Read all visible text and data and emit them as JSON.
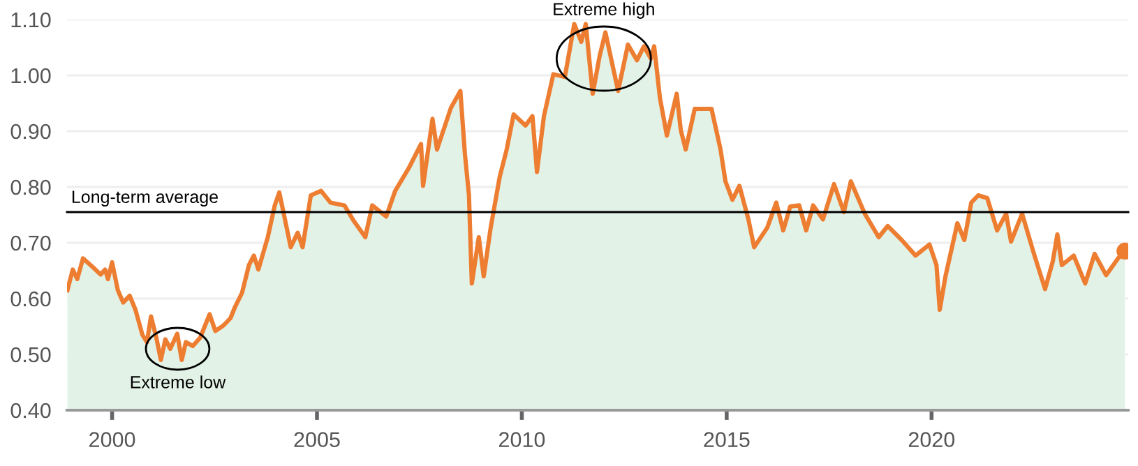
{
  "chart_data": {
    "type": "area",
    "x": [
      1998.91,
      1999.04,
      1999.15,
      1999.29,
      1999.55,
      1999.72,
      1999.83,
      1999.9,
      2000.0,
      2000.14,
      2000.27,
      2000.43,
      2000.57,
      2000.74,
      2000.85,
      2000.95,
      2001.08,
      2001.19,
      2001.3,
      2001.42,
      2001.59,
      2001.7,
      2001.8,
      2001.97,
      2002.15,
      2002.38,
      2002.52,
      2002.72,
      2002.89,
      2003.0,
      2003.17,
      2003.34,
      2003.46,
      2003.57,
      2003.8,
      2003.97,
      2004.08,
      2004.19,
      2004.36,
      2004.53,
      2004.65,
      2004.85,
      2005.1,
      2005.33,
      2005.67,
      2005.89,
      2006.18,
      2006.35,
      2006.69,
      2006.91,
      2007.25,
      2007.54,
      2007.59,
      2007.82,
      2007.93,
      2008.27,
      2008.5,
      2008.61,
      2008.71,
      2008.78,
      2008.95,
      2009.07,
      2009.24,
      2009.46,
      2009.63,
      2009.8,
      2010.09,
      2010.26,
      2010.37,
      2010.54,
      2010.77,
      2011.05,
      2011.28,
      2011.45,
      2011.56,
      2011.73,
      2011.9,
      2012.04,
      2012.35,
      2012.59,
      2012.81,
      2012.98,
      2013.15,
      2013.23,
      2013.37,
      2013.54,
      2013.78,
      2013.88,
      2014.0,
      2014.22,
      2014.63,
      2014.85,
      2014.97,
      2015.14,
      2015.31,
      2015.53,
      2015.67,
      2015.99,
      2016.21,
      2016.38,
      2016.55,
      2016.77,
      2016.94,
      2017.11,
      2017.35,
      2017.62,
      2017.86,
      2018.03,
      2018.37,
      2018.71,
      2018.93,
      2019.27,
      2019.61,
      2019.95,
      2020.12,
      2020.2,
      2020.34,
      2020.63,
      2020.8,
      2020.97,
      2021.14,
      2021.36,
      2021.6,
      2021.82,
      2021.94,
      2022.21,
      2022.5,
      2022.77,
      2022.96,
      2023.07,
      2023.18,
      2023.47,
      2023.75,
      2023.98,
      2024.26,
      2024.55,
      2024.72
    ],
    "series": [
      {
        "color": "#ed7d31",
        "values": [
          0.615,
          0.652,
          0.635,
          0.672,
          0.655,
          0.643,
          0.652,
          0.635,
          0.665,
          0.615,
          0.593,
          0.605,
          0.58,
          0.535,
          0.522,
          0.568,
          0.53,
          0.49,
          0.527,
          0.51,
          0.537,
          0.49,
          0.522,
          0.515,
          0.53,
          0.572,
          0.542,
          0.552,
          0.565,
          0.585,
          0.61,
          0.66,
          0.677,
          0.652,
          0.71,
          0.767,
          0.79,
          0.752,
          0.692,
          0.718,
          0.692,
          0.785,
          0.793,
          0.772,
          0.767,
          0.74,
          0.71,
          0.767,
          0.747,
          0.793,
          0.835,
          0.877,
          0.802,
          0.922,
          0.867,
          0.942,
          0.972,
          0.86,
          0.785,
          0.627,
          0.71,
          0.64,
          0.727,
          0.818,
          0.867,
          0.93,
          0.91,
          0.927,
          0.827,
          0.927,
          1.002,
          0.997,
          1.092,
          1.06,
          1.092,
          0.967,
          1.035,
          1.077,
          0.972,
          1.055,
          1.027,
          1.052,
          1.03,
          1.052,
          0.96,
          0.892,
          0.967,
          0.902,
          0.867,
          0.94,
          0.94,
          0.867,
          0.81,
          0.777,
          0.802,
          0.742,
          0.692,
          0.727,
          0.772,
          0.722,
          0.765,
          0.767,
          0.722,
          0.767,
          0.742,
          0.805,
          0.755,
          0.81,
          0.752,
          0.71,
          0.73,
          0.705,
          0.677,
          0.697,
          0.66,
          0.58,
          0.64,
          0.735,
          0.705,
          0.772,
          0.785,
          0.78,
          0.722,
          0.752,
          0.702,
          0.752,
          0.68,
          0.617,
          0.667,
          0.715,
          0.66,
          0.677,
          0.627,
          0.68,
          0.642,
          0.672,
          0.685
        ]
      }
    ],
    "xlim": [
      1998.9,
      2024.8
    ],
    "ylim": [
      0.4,
      1.1
    ],
    "xticks": [
      2000,
      2005,
      2010,
      2015,
      2020
    ],
    "yticks": [
      {
        "value": 0.4,
        "label": "0.40"
      },
      {
        "value": 0.5,
        "label": "0.50"
      },
      {
        "value": 0.6,
        "label": "0.60"
      },
      {
        "value": 0.7,
        "label": "0.70"
      },
      {
        "value": 0.8,
        "label": "0.80"
      },
      {
        "value": 0.9,
        "label": "0.90"
      },
      {
        "value": 1.0,
        "label": "1.00"
      },
      {
        "value": 1.1,
        "label": "1.10"
      }
    ],
    "grid": "y",
    "ref_lines": [
      {
        "axis": "y",
        "value": 0.755,
        "label": "Long-term average",
        "color": "#000000"
      }
    ],
    "annotations": [
      {
        "text": "Extreme high",
        "x": 2012.0,
        "y": 1.03
      },
      {
        "text": "Extreme low",
        "x": 2001.6,
        "y": 0.51
      }
    ]
  }
}
